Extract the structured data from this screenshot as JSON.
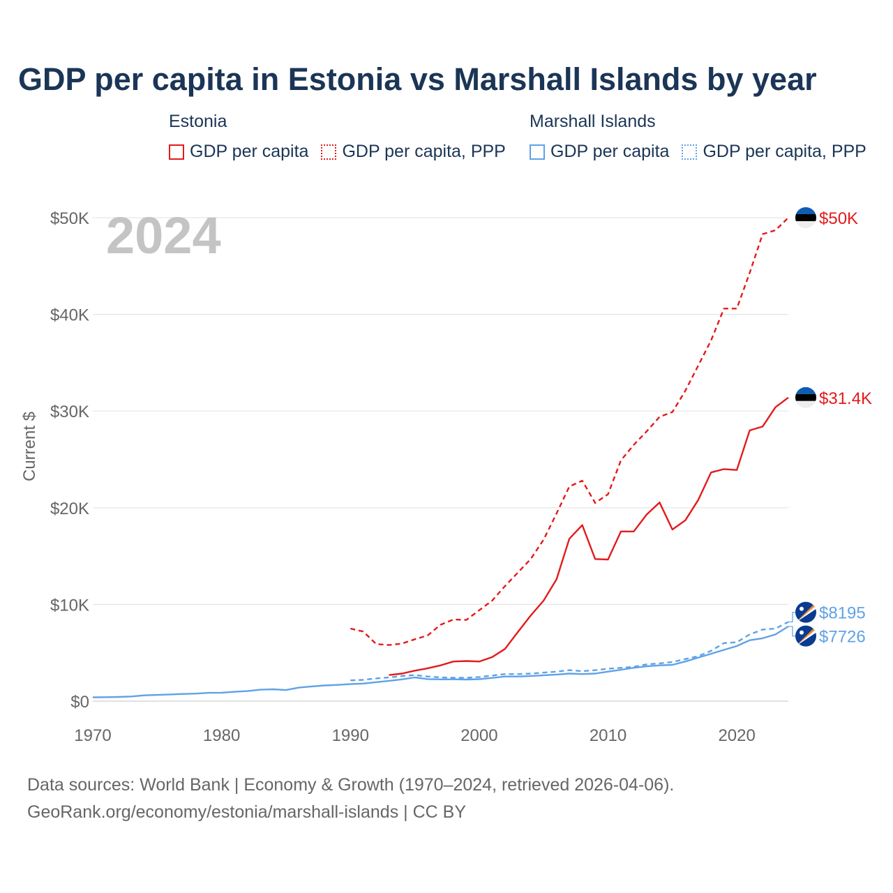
{
  "title": "GDP per capita in Estonia vs Marshall Islands by year",
  "legend": {
    "estonia": {
      "country": "Estonia",
      "items": [
        "GDP per capita",
        "GDP per capita, PPP"
      ]
    },
    "marshall": {
      "country": "Marshall Islands",
      "items": [
        "GDP per capita",
        "GDP per capita, PPP"
      ]
    }
  },
  "colors": {
    "estonia": "#e31a1c",
    "marshall": "#5fa2e6",
    "grid": "#e6e6e6",
    "axis_text": "#666666",
    "year": "#c4c4c4"
  },
  "chart_data": {
    "type": "line",
    "title": "GDP per capita in Estonia vs Marshall Islands by year",
    "xlabel": "",
    "ylabel": "Current $",
    "xlim": [
      1970,
      2024
    ],
    "ylim": [
      0,
      50000
    ],
    "x_ticks": [
      1970,
      1980,
      1990,
      2000,
      2010,
      2020
    ],
    "y_ticks": [
      0,
      10000,
      20000,
      30000,
      40000,
      50000
    ],
    "y_tick_labels": [
      "$0",
      "$10K",
      "$20K",
      "$30K",
      "$40K",
      "$50K"
    ],
    "current_year": "2024",
    "series": [
      {
        "name": "Estonia GDP per capita",
        "country": "Estonia",
        "style": "solid",
        "color": "#e31a1c",
        "end_label": "$31.4K",
        "points": [
          [
            1993,
            2700
          ],
          [
            1994,
            2850
          ],
          [
            1995,
            3150
          ],
          [
            1996,
            3400
          ],
          [
            1997,
            3700
          ],
          [
            1998,
            4100
          ],
          [
            1999,
            4150
          ],
          [
            2000,
            4100
          ],
          [
            2001,
            4550
          ],
          [
            2002,
            5400
          ],
          [
            2003,
            7150
          ],
          [
            2004,
            8850
          ],
          [
            2005,
            10400
          ],
          [
            2006,
            12600
          ],
          [
            2007,
            16800
          ],
          [
            2008,
            18200
          ],
          [
            2009,
            14700
          ],
          [
            2010,
            14650
          ],
          [
            2011,
            17550
          ],
          [
            2012,
            17550
          ],
          [
            2013,
            19300
          ],
          [
            2014,
            20550
          ],
          [
            2015,
            17750
          ],
          [
            2016,
            18700
          ],
          [
            2017,
            20800
          ],
          [
            2018,
            23650
          ],
          [
            2019,
            24000
          ],
          [
            2020,
            23900
          ],
          [
            2021,
            28000
          ],
          [
            2022,
            28400
          ],
          [
            2023,
            30400
          ],
          [
            2024,
            31400
          ]
        ]
      },
      {
        "name": "Estonia GDP per capita, PPP",
        "country": "Estonia",
        "style": "dashed",
        "color": "#e31a1c",
        "end_label": "$50K",
        "points": [
          [
            1990,
            7500
          ],
          [
            1991,
            7200
          ],
          [
            1992,
            5900
          ],
          [
            1993,
            5800
          ],
          [
            1994,
            5950
          ],
          [
            1995,
            6400
          ],
          [
            1996,
            6800
          ],
          [
            1997,
            7900
          ],
          [
            1998,
            8450
          ],
          [
            1999,
            8400
          ],
          [
            2000,
            9400
          ],
          [
            2001,
            10400
          ],
          [
            2002,
            11900
          ],
          [
            2003,
            13300
          ],
          [
            2004,
            14700
          ],
          [
            2005,
            16700
          ],
          [
            2006,
            19400
          ],
          [
            2007,
            22200
          ],
          [
            2008,
            22800
          ],
          [
            2009,
            20500
          ],
          [
            2010,
            21400
          ],
          [
            2011,
            24900
          ],
          [
            2012,
            26500
          ],
          [
            2013,
            27900
          ],
          [
            2014,
            29400
          ],
          [
            2015,
            29900
          ],
          [
            2016,
            32100
          ],
          [
            2017,
            34700
          ],
          [
            2018,
            37300
          ],
          [
            2019,
            40600
          ],
          [
            2020,
            40600
          ],
          [
            2021,
            44300
          ],
          [
            2022,
            48300
          ],
          [
            2023,
            48700
          ],
          [
            2024,
            50000
          ]
        ]
      },
      {
        "name": "Marshall Islands GDP per capita",
        "country": "Marshall Islands",
        "style": "solid",
        "color": "#5fa2e6",
        "end_label": "$7726",
        "points": [
          [
            1970,
            400
          ],
          [
            1971,
            410
          ],
          [
            1972,
            430
          ],
          [
            1973,
            480
          ],
          [
            1974,
            600
          ],
          [
            1975,
            640
          ],
          [
            1976,
            690
          ],
          [
            1977,
            740
          ],
          [
            1978,
            780
          ],
          [
            1979,
            860
          ],
          [
            1980,
            870
          ],
          [
            1981,
            970
          ],
          [
            1982,
            1040
          ],
          [
            1983,
            1180
          ],
          [
            1984,
            1230
          ],
          [
            1985,
            1150
          ],
          [
            1986,
            1400
          ],
          [
            1987,
            1520
          ],
          [
            1988,
            1620
          ],
          [
            1989,
            1680
          ],
          [
            1990,
            1760
          ],
          [
            1991,
            1820
          ],
          [
            1992,
            1960
          ],
          [
            1993,
            2100
          ],
          [
            1994,
            2250
          ],
          [
            1995,
            2450
          ],
          [
            1996,
            2280
          ],
          [
            1997,
            2250
          ],
          [
            1998,
            2260
          ],
          [
            1999,
            2240
          ],
          [
            2000,
            2270
          ],
          [
            2001,
            2400
          ],
          [
            2002,
            2550
          ],
          [
            2003,
            2550
          ],
          [
            2004,
            2600
          ],
          [
            2005,
            2680
          ],
          [
            2006,
            2750
          ],
          [
            2007,
            2850
          ],
          [
            2008,
            2800
          ],
          [
            2009,
            2850
          ],
          [
            2010,
            3050
          ],
          [
            2011,
            3250
          ],
          [
            2012,
            3450
          ],
          [
            2013,
            3600
          ],
          [
            2014,
            3700
          ],
          [
            2015,
            3750
          ],
          [
            2016,
            4100
          ],
          [
            2017,
            4500
          ],
          [
            2018,
            4900
          ],
          [
            2019,
            5300
          ],
          [
            2020,
            5700
          ],
          [
            2021,
            6300
          ],
          [
            2022,
            6500
          ],
          [
            2023,
            6900
          ],
          [
            2024,
            7726
          ]
        ]
      },
      {
        "name": "Marshall Islands GDP per capita, PPP",
        "country": "Marshall Islands",
        "style": "dashed",
        "color": "#5fa2e6",
        "end_label": "$8195",
        "points": [
          [
            1990,
            2150
          ],
          [
            1991,
            2200
          ],
          [
            1992,
            2350
          ],
          [
            1993,
            2450
          ],
          [
            1994,
            2600
          ],
          [
            1995,
            2700
          ],
          [
            1996,
            2550
          ],
          [
            1997,
            2450
          ],
          [
            1998,
            2420
          ],
          [
            1999,
            2420
          ],
          [
            2000,
            2500
          ],
          [
            2001,
            2650
          ],
          [
            2002,
            2800
          ],
          [
            2003,
            2800
          ],
          [
            2004,
            2850
          ],
          [
            2005,
            2950
          ],
          [
            2006,
            3050
          ],
          [
            2007,
            3200
          ],
          [
            2008,
            3100
          ],
          [
            2009,
            3200
          ],
          [
            2010,
            3350
          ],
          [
            2011,
            3450
          ],
          [
            2012,
            3550
          ],
          [
            2013,
            3800
          ],
          [
            2014,
            3900
          ],
          [
            2015,
            4050
          ],
          [
            2016,
            4350
          ],
          [
            2017,
            4650
          ],
          [
            2018,
            5200
          ],
          [
            2019,
            6000
          ],
          [
            2020,
            6100
          ],
          [
            2021,
            6900
          ],
          [
            2022,
            7400
          ],
          [
            2023,
            7500
          ],
          [
            2024,
            8195
          ]
        ]
      }
    ]
  },
  "footer": {
    "line1": "Data sources: World Bank | Economy & Growth (1970–2024, retrieved 2026-04-06).",
    "line2": "GeoRank.org/economy/estonia/marshall-islands | CC BY"
  }
}
